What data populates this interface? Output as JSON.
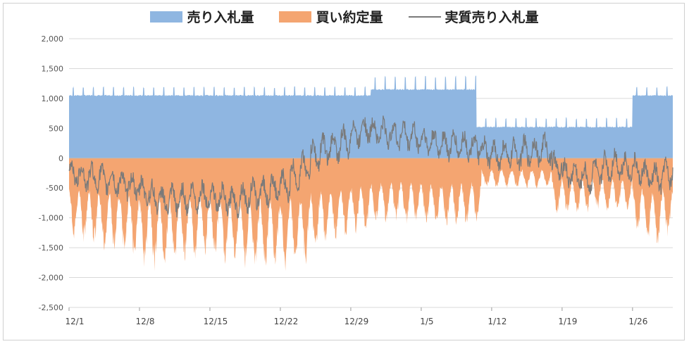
{
  "chart_data": {
    "type": "area",
    "title": "",
    "xlabel": "",
    "ylabel": "",
    "ylim": [
      -2500,
      2000
    ],
    "y_ticks": [
      {
        "value": 2000,
        "label": "2,000"
      },
      {
        "value": 1500,
        "label": "1,500"
      },
      {
        "value": 1000,
        "label": "1,000"
      },
      {
        "value": 500,
        "label": "500"
      },
      {
        "value": 0,
        "label": "0"
      },
      {
        "value": -500,
        "label": "-500"
      },
      {
        "value": -1000,
        "label": "-1,000"
      },
      {
        "value": -1500,
        "label": "-1,500"
      },
      {
        "value": -2000,
        "label": "-2,000"
      },
      {
        "value": -2500,
        "label": "-2,500"
      }
    ],
    "x_ticks": [
      {
        "day": 0,
        "label": "12/1"
      },
      {
        "day": 7,
        "label": "12/8"
      },
      {
        "day": 14,
        "label": "12/15"
      },
      {
        "day": 21,
        "label": "12/22"
      },
      {
        "day": 28,
        "label": "12/29"
      },
      {
        "day": 35,
        "label": "1/5"
      },
      {
        "day": 42,
        "label": "1/12"
      },
      {
        "day": 49,
        "label": "1/19"
      },
      {
        "day": 56,
        "label": "1/26"
      }
    ],
    "day_range": [
      0,
      60
    ],
    "grid": true,
    "legend_position": "top-center",
    "series": [
      {
        "name": "売り入札量",
        "kind": "area",
        "color": "#8fb6e1",
        "segments": [
          {
            "from": 0,
            "to": 30,
            "base": 1050,
            "peak": 1200
          },
          {
            "from": 30,
            "to": 40.5,
            "base": 1150,
            "peak": 1380
          },
          {
            "from": 40.5,
            "to": 56,
            "base": 520,
            "peak": 680
          },
          {
            "from": 56,
            "to": 60,
            "base": 1050,
            "peak": 1200
          }
        ]
      },
      {
        "name": "買い約定量",
        "kind": "area",
        "color": "#f4a571",
        "daily_trough": [
          -1350,
          -1450,
          -1500,
          -1600,
          -1550,
          -1650,
          -1750,
          -1850,
          -1900,
          -1850,
          -1800,
          -1750,
          -1700,
          -1650,
          -1700,
          -1800,
          -1850,
          -1900,
          -1950,
          -1900,
          -1850,
          -1900,
          -1850,
          -1800,
          -1600,
          -1450,
          -1400,
          -1350,
          -1300,
          -1250,
          -1150,
          -1100,
          -1100,
          -1150,
          -1100,
          -1150,
          -1150,
          -1200,
          -1150,
          -1150,
          -1100,
          -520,
          -520,
          -520,
          -520,
          -520,
          -520,
          -520,
          -1000,
          -950,
          -1000,
          -950,
          -900,
          -950,
          -950,
          -950,
          -1300,
          -1450,
          -1500,
          -1350
        ]
      },
      {
        "name": "実質売り入札量",
        "kind": "line",
        "color": "#7a7a7a",
        "daily_level": [
          -250,
          -300,
          -320,
          -350,
          -400,
          -430,
          -470,
          -550,
          -650,
          -720,
          -700,
          -680,
          -650,
          -620,
          -660,
          -700,
          -720,
          -650,
          -600,
          -550,
          -500,
          -450,
          -300,
          -150,
          50,
          150,
          200,
          280,
          420,
          500,
          450,
          420,
          400,
          380,
          350,
          280,
          250,
          230,
          220,
          210,
          180,
          80,
          50,
          60,
          80,
          100,
          120,
          150,
          -150,
          -250,
          -300,
          -350,
          -250,
          -150,
          -100,
          -150,
          -200,
          -300,
          -350,
          -250
        ]
      }
    ]
  }
}
